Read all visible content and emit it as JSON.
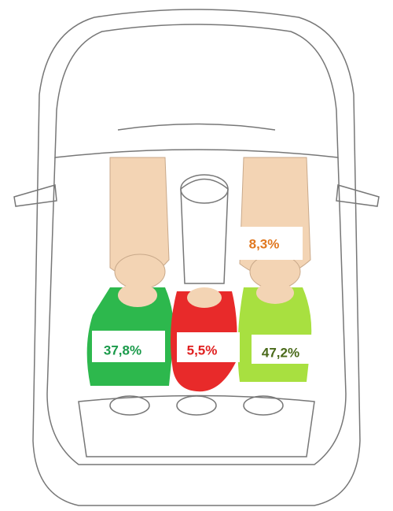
{
  "labels": [
    {
      "text": "8,3%"
    },
    {
      "text": "37,8%"
    },
    {
      "text": "5,5%"
    },
    {
      "text": "47,2%"
    }
  ]
}
